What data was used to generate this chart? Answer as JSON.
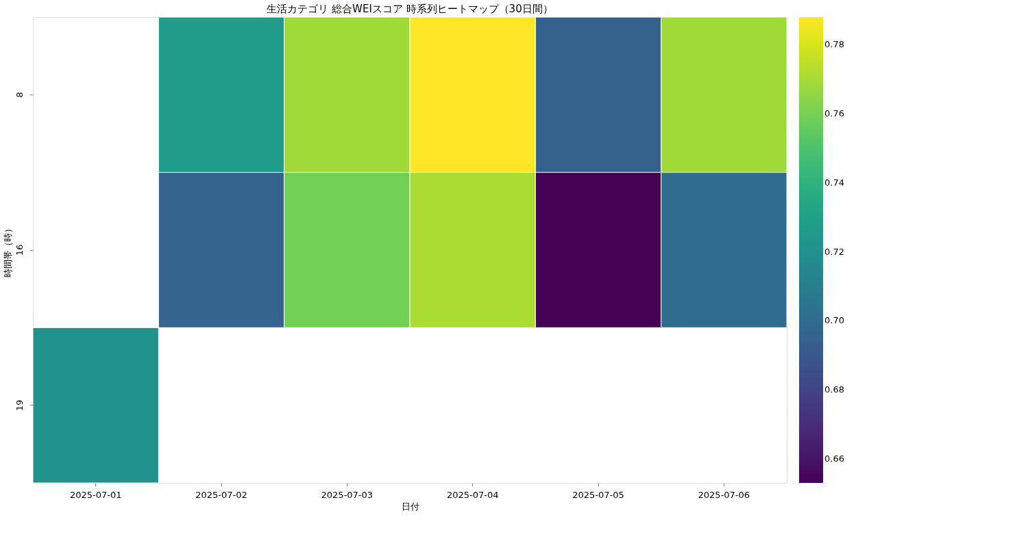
{
  "chart_data": {
    "type": "heatmap",
    "title": "生活カテゴリ 総合WEIスコア 時系列ヒートマップ（30日間）",
    "xlabel": "日付",
    "ylabel": "時間帯（時）",
    "categories": [
      "2025-07-01",
      "2025-07-02",
      "2025-07-03",
      "2025-07-04",
      "2025-07-05",
      "2025-07-06"
    ],
    "y_categories": [
      "8",
      "16",
      "19"
    ],
    "cells": [
      [
        null,
        0.727,
        0.769,
        0.788,
        0.694,
        0.769
      ],
      [
        null,
        0.695,
        0.759,
        0.771,
        0.653,
        0.7
      ],
      [
        0.721,
        null,
        null,
        null,
        null,
        null
      ]
    ],
    "clim": [
      0.653,
      0.788
    ],
    "cticks": [
      0.66,
      0.68,
      {
        "value": 0.7,
        "label": "0.70"
      },
      0.72,
      0.74,
      0.76,
      0.78
    ],
    "grid": false
  }
}
